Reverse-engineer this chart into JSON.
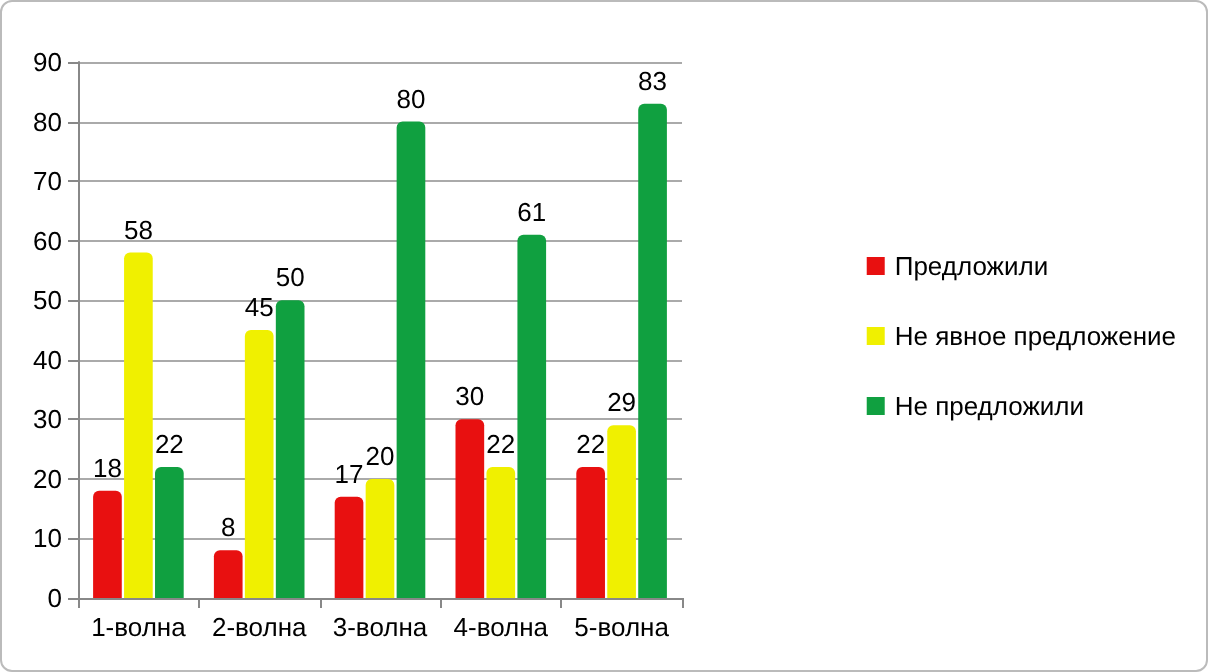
{
  "chart_data": {
    "type": "bar",
    "categories": [
      "1-волна",
      "2-волна",
      "3-волна",
      "4-волна",
      "5-волна"
    ],
    "series": [
      {
        "name": "Предложили",
        "color": "#e81010",
        "values": [
          18,
          8,
          17,
          30,
          22
        ]
      },
      {
        "name": "Не явное предложение",
        "color": "#f0f000",
        "values": [
          58,
          45,
          20,
          22,
          29
        ]
      },
      {
        "name": "Не предложили",
        "color": "#10a040",
        "values": [
          22,
          50,
          80,
          61,
          83
        ]
      }
    ],
    "ylim": [
      0,
      90
    ],
    "yticks": [
      0,
      10,
      20,
      30,
      40,
      50,
      60,
      70,
      80,
      90
    ],
    "grid": "y",
    "legend": "right",
    "data_labels": true
  }
}
